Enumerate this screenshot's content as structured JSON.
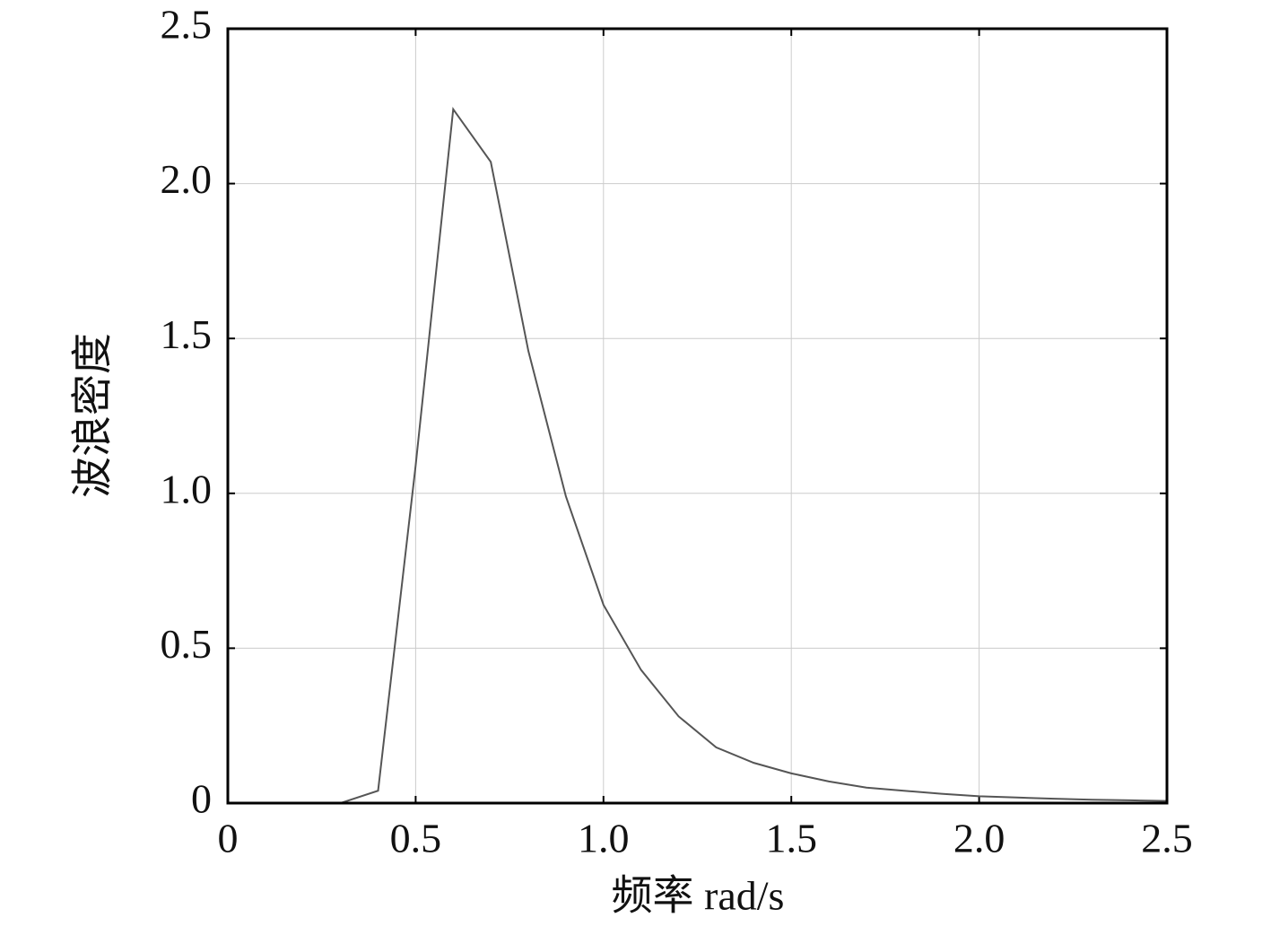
{
  "chart_data": {
    "type": "line",
    "x_label": "频率 rad/s",
    "y_label": "波浪密度",
    "x": [
      0,
      0.1,
      0.2,
      0.3,
      0.4,
      0.5,
      0.6,
      0.7,
      0.8,
      0.9,
      1.0,
      1.1,
      1.2,
      1.3,
      1.4,
      1.5,
      1.6,
      1.7,
      1.8,
      1.9,
      2.0,
      2.1,
      2.2,
      2.3,
      2.4,
      2.5
    ],
    "series": [
      {
        "color": "#555555",
        "values": [
          0,
          0,
          0,
          0,
          0.04,
          1.09,
          2.24,
          2.07,
          1.46,
          0.99,
          0.64,
          0.43,
          0.28,
          0.18,
          0.13,
          0.096,
          0.07,
          0.05,
          0.04,
          0.03,
          0.022,
          0.018,
          0.014,
          0.011,
          0.009,
          0.007
        ]
      }
    ],
    "xlim": [
      0,
      2.5
    ],
    "ylim": [
      0,
      2.5
    ],
    "xticks": [
      0,
      0.5,
      {
        "value": 1,
        "label": "1.0"
      },
      1.5,
      {
        "value": 2,
        "label": "2.0"
      },
      2.5
    ],
    "yticks": [
      0,
      0.5,
      {
        "value": 1,
        "label": "1.0"
      },
      1.5,
      {
        "value": 2,
        "label": "2.0"
      },
      2.5
    ],
    "grid": true
  }
}
